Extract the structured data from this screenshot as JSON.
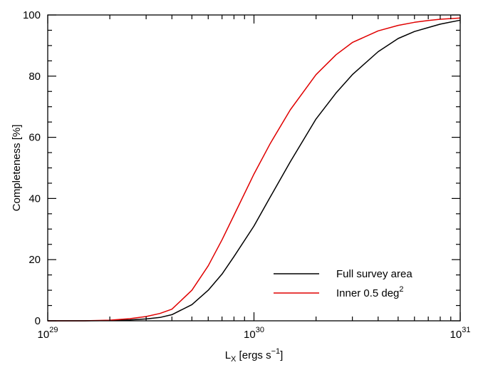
{
  "chart_data": {
    "type": "line",
    "xscale": "log",
    "xlim": [
      1e+29,
      1e+31
    ],
    "ylim": [
      0,
      100
    ],
    "xlabel": {
      "base": "L",
      "sub": "X",
      "text": " [ergs s",
      "sup": "−1",
      "close": "]"
    },
    "ylabel": "Completeness [%]",
    "x_ticks": [
      {
        "value": 1e+29,
        "base": "10",
        "exp": "29"
      },
      {
        "value": 1e+30,
        "base": "10",
        "exp": "30"
      },
      {
        "value": 1e+31,
        "base": "10",
        "exp": "31"
      }
    ],
    "y_ticks": [
      "0",
      "20",
      "40",
      "60",
      "80",
      "100"
    ],
    "legend_position": "bottom-right",
    "series": [
      {
        "name": "Full survey area",
        "color": "#000000",
        "x": [
          1e+29,
          1.5e+29,
          2e+29,
          2.5e+29,
          3e+29,
          3.5e+29,
          4e+29,
          5e+29,
          6e+29,
          7e+29,
          8e+29,
          1e+30,
          1.2e+30,
          1.5e+30,
          2e+30,
          2.5e+30,
          3e+30,
          4e+30,
          5e+30,
          6e+30,
          7e+30,
          8e+30,
          1e+31
        ],
        "y": [
          0,
          0,
          0.1,
          0.3,
          0.6,
          1.1,
          2.0,
          5.3,
          10.0,
          15.3,
          21.0,
          31.0,
          40.5,
          52.0,
          66.0,
          74.5,
          80.5,
          88.0,
          92.3,
          94.6,
          95.9,
          97.0,
          98.3
        ]
      },
      {
        "name": "Inner 0.5 deg",
        "name_sup": "2",
        "color": "#e00000",
        "x": [
          1e+29,
          1.5e+29,
          2e+29,
          2.5e+29,
          3e+29,
          3.5e+29,
          4e+29,
          5e+29,
          6e+29,
          7e+29,
          8e+29,
          1e+30,
          1.2e+30,
          1.5e+30,
          2e+30,
          2.5e+30,
          3e+30,
          4e+30,
          5e+30,
          6e+30,
          7e+30,
          8e+30,
          1e+31
        ],
        "y": [
          0,
          0,
          0.2,
          0.7,
          1.4,
          2.4,
          3.8,
          10.0,
          18.0,
          26.5,
          34.5,
          48.0,
          58.0,
          69.0,
          80.5,
          87.0,
          91.0,
          94.8,
          96.6,
          97.6,
          98.2,
          98.6,
          99.0
        ]
      }
    ]
  }
}
